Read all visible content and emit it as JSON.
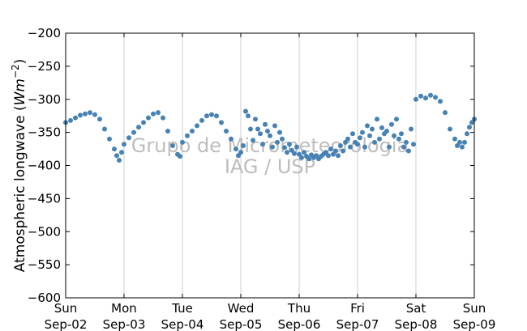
{
  "chart_data": {
    "type": "scatter",
    "title": "",
    "ylabel": "Atmospheric longwave (Wm⁻²)",
    "ylabel_math": {
      "prefix": "Atmospheric longwave (",
      "unit": "Wm",
      "exponent": "−2",
      "suffix": ")"
    },
    "ylim": [
      -600,
      -200
    ],
    "yticks": [
      -200,
      -250,
      -300,
      -350,
      -400,
      -450,
      -500,
      -550,
      -600
    ],
    "ytick_labels": [
      "−200",
      "−250",
      "−300",
      "−350",
      "−400",
      "−450",
      "−500",
      "−550",
      "−600"
    ],
    "xlim": [
      "2012-09-02",
      "2012-09-09"
    ],
    "xticks": [
      {
        "date": "Sep-02",
        "day": "Sun"
      },
      {
        "date": "Sep-03",
        "day": "Mon"
      },
      {
        "date": "Sep-04",
        "day": "Tue"
      },
      {
        "date": "Sep-05",
        "day": "Wed"
      },
      {
        "date": "Sep-06",
        "day": "Thu"
      },
      {
        "date": "Sep-07",
        "day": "Fri"
      },
      {
        "date": "Sep-08",
        "day": "Sat"
      },
      {
        "date": "Sep-09",
        "day": "Sun"
      }
    ],
    "grid": "vertical",
    "color": "#4682b4",
    "watermark": [
      "Grupo de Micrometeorologia",
      "IAG / USP"
    ],
    "series": [
      {
        "x": [
          "2012-09-02 00:00",
          "2012-09-02 02:00",
          "2012-09-02 04:00",
          "2012-09-02 06:00",
          "2012-09-02 08:00",
          "2012-09-02 10:00",
          "2012-09-02 12:00",
          "2012-09-02 14:00",
          "2012-09-02 16:00",
          "2012-09-02 18:00",
          "2012-09-02 20:00",
          "2012-09-02 21:00",
          "2012-09-02 22:00",
          "2012-09-02 23:00",
          "2012-09-03 00:00",
          "2012-09-03 02:00",
          "2012-09-03 04:00",
          "2012-09-03 06:00",
          "2012-09-03 08:00",
          "2012-09-03 10:00",
          "2012-09-03 12:00",
          "2012-09-03 14:00",
          "2012-09-03 16:00",
          "2012-09-03 18:00",
          "2012-09-03 20:00",
          "2012-09-03 22:00",
          "2012-09-03 23:00",
          "2012-09-04 00:00",
          "2012-09-04 02:00",
          "2012-09-04 04:00",
          "2012-09-04 06:00",
          "2012-09-04 08:00",
          "2012-09-04 10:00",
          "2012-09-04 12:00",
          "2012-09-04 14:00",
          "2012-09-04 16:00",
          "2012-09-04 18:00",
          "2012-09-04 20:00",
          "2012-09-04 22:00",
          "2012-09-04 23:00",
          "2012-09-05 00:00",
          "2012-09-05 01:00",
          "2012-09-05 02:00",
          "2012-09-05 03:00",
          "2012-09-05 04:00",
          "2012-09-05 05:00",
          "2012-09-05 06:00",
          "2012-09-05 07:00",
          "2012-09-05 08:00",
          "2012-09-05 09:00",
          "2012-09-05 10:00",
          "2012-09-05 11:00",
          "2012-09-05 12:00",
          "2012-09-05 13:00",
          "2012-09-05 14:00",
          "2012-09-05 15:00",
          "2012-09-05 16:00",
          "2012-09-05 17:00",
          "2012-09-05 18:00",
          "2012-09-05 19:00",
          "2012-09-05 20:00",
          "2012-09-05 21:00",
          "2012-09-05 22:00",
          "2012-09-05 23:00",
          "2012-09-06 00:00",
          "2012-09-06 01:00",
          "2012-09-06 02:00",
          "2012-09-06 03:00",
          "2012-09-06 04:00",
          "2012-09-06 05:00",
          "2012-09-06 06:00",
          "2012-09-06 07:00",
          "2012-09-06 08:00",
          "2012-09-06 09:00",
          "2012-09-06 10:00",
          "2012-09-06 11:00",
          "2012-09-06 12:00",
          "2012-09-06 13:00",
          "2012-09-06 14:00",
          "2012-09-06 15:00",
          "2012-09-06 16:00",
          "2012-09-06 17:00",
          "2012-09-06 18:00",
          "2012-09-06 19:00",
          "2012-09-06 20:00",
          "2012-09-06 21:00",
          "2012-09-06 22:00",
          "2012-09-06 23:00",
          "2012-09-07 00:00",
          "2012-09-07 01:00",
          "2012-09-07 02:00",
          "2012-09-07 03:00",
          "2012-09-07 04:00",
          "2012-09-07 05:00",
          "2012-09-07 06:00",
          "2012-09-07 07:00",
          "2012-09-07 08:00",
          "2012-09-07 09:00",
          "2012-09-07 10:00",
          "2012-09-07 11:00",
          "2012-09-07 12:00",
          "2012-09-07 13:00",
          "2012-09-07 14:00",
          "2012-09-07 15:00",
          "2012-09-07 16:00",
          "2012-09-07 17:00",
          "2012-09-07 18:00",
          "2012-09-07 19:00",
          "2012-09-07 20:00",
          "2012-09-07 21:00",
          "2012-09-07 22:00",
          "2012-09-07 23:00",
          "2012-09-08 00:00",
          "2012-09-08 02:00",
          "2012-09-08 04:00",
          "2012-09-08 06:00",
          "2012-09-08 08:00",
          "2012-09-08 10:00",
          "2012-09-08 12:00",
          "2012-09-08 14:00",
          "2012-09-08 16:00",
          "2012-09-08 17:00",
          "2012-09-08 18:00",
          "2012-09-08 19:00",
          "2012-09-08 20:00",
          "2012-09-08 21:00",
          "2012-09-08 22:00",
          "2012-09-08 23:00",
          "2012-09-09 00:00"
        ],
        "y": [
          -335,
          -332,
          -328,
          -324,
          -322,
          -320,
          -323,
          -330,
          -345,
          -360,
          -375,
          -385,
          -392,
          -380,
          -368,
          -358,
          -350,
          -342,
          -335,
          -328,
          -322,
          -320,
          -328,
          -348,
          -370,
          -383,
          -386,
          -365,
          -355,
          -348,
          -340,
          -332,
          -325,
          -323,
          -325,
          -335,
          -348,
          -360,
          -375,
          -385,
          -380,
          -370,
          -318,
          -325,
          -345,
          -362,
          -330,
          -345,
          -352,
          -368,
          -338,
          -348,
          -355,
          -372,
          -340,
          -365,
          -350,
          -360,
          -373,
          -380,
          -368,
          -377,
          -382,
          -372,
          -383,
          -388,
          -380,
          -386,
          -390,
          -384,
          -388,
          -385,
          -390,
          -386,
          -383,
          -380,
          -385,
          -375,
          -383,
          -378,
          -385,
          -370,
          -378,
          -365,
          -360,
          -372,
          -352,
          -365,
          -368,
          -358,
          -350,
          -372,
          -340,
          -355,
          -345,
          -365,
          -330,
          -360,
          -343,
          -352,
          -348,
          -372,
          -338,
          -355,
          -330,
          -360,
          -352,
          -372,
          -365,
          -378,
          -345,
          -368,
          -300,
          -295,
          -298,
          -294,
          -297,
          -303,
          -320,
          -345,
          -360,
          -370,
          -365,
          -372,
          -365,
          -352,
          -342,
          -335,
          -330
        ]
      }
    ]
  }
}
